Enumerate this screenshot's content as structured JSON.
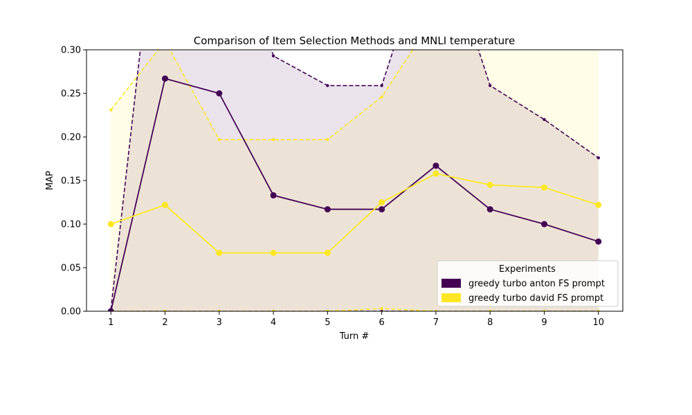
{
  "chart_data": {
    "type": "line",
    "title": "Comparison of Item Selection Methods and MNLI temperature",
    "xlabel": "Turn #",
    "ylabel": "MAP",
    "x": [
      1,
      2,
      3,
      4,
      5,
      6,
      7,
      8,
      9,
      10
    ],
    "xticks": [
      "1",
      "2",
      "3",
      "4",
      "5",
      "6",
      "7",
      "8",
      "9",
      "10"
    ],
    "yticks": [
      "0.00",
      "0.05",
      "0.10",
      "0.15",
      "0.20",
      "0.25",
      "0.30"
    ],
    "xlim": [
      0.55,
      10.45
    ],
    "ylim": [
      0,
      0.3
    ],
    "grid": false,
    "legend": {
      "title": "Experiments",
      "placement": "lower-right"
    },
    "series": [
      {
        "name": "greedy turbo anton FS prompt",
        "color": "#440154",
        "values": [
          0.0,
          0.267,
          0.25,
          0.133,
          0.117,
          0.117,
          0.167,
          0.117,
          0.1,
          0.08
        ],
        "upper": [
          0.002,
          0.55,
          0.5,
          0.293,
          0.259,
          0.259,
          0.45,
          0.259,
          0.22,
          0.176
        ],
        "lower": [
          0.0,
          0.0,
          0.0,
          0.0,
          0.0,
          0.0,
          0.0,
          0.0,
          0.0,
          0.0
        ]
      },
      {
        "name": "greedy turbo david FS prompt",
        "color": "#fde725",
        "values": [
          0.1,
          0.122,
          0.067,
          0.067,
          0.067,
          0.125,
          0.158,
          0.145,
          0.142,
          0.122
        ],
        "upper": [
          0.231,
          0.31,
          0.197,
          0.197,
          0.197,
          0.246,
          0.34,
          0.34,
          0.34,
          0.34
        ],
        "lower": [
          0.0,
          0.0,
          0.0,
          0.0,
          0.0,
          0.003,
          0.0,
          0.0,
          0.0,
          0.0
        ]
      }
    ]
  }
}
